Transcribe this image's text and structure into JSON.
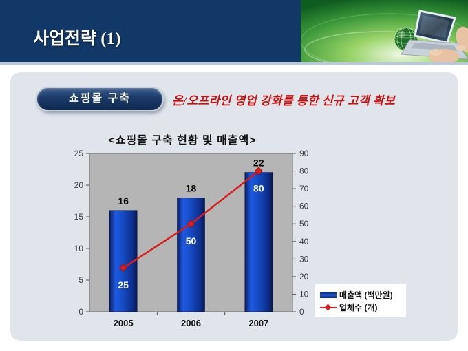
{
  "slide": {
    "header_title": "사업전략 (1)",
    "badge_label": "쇼핑몰 구축",
    "subtitle": "온/오프라인 영업 강화를 통한 신규 고객 확보",
    "header_image": "globe-laptop-hands-photo"
  },
  "colors": {
    "header_navy": "#123867",
    "panel_background": "#dfe5eb",
    "accent_red": "#c71111",
    "bar_blue": "#1450c8",
    "line_red": "#d91c1c",
    "plot_gray": "#b5b5b5"
  },
  "chart_data": {
    "type": "bar+line",
    "title": "<쇼핑몰 구축 현황 및 매출액>",
    "categories": [
      "2005",
      "2006",
      "2007"
    ],
    "series": [
      {
        "name": "매출액 (백만원)",
        "type": "bar",
        "axis": "left",
        "values": [
          16,
          18,
          22
        ],
        "color": "#1450c8",
        "value_label_color": "#000000"
      },
      {
        "name": "업체수 (개)",
        "type": "line",
        "axis": "right",
        "values": [
          25,
          50,
          80
        ],
        "color": "#d91c1c",
        "value_label_color": "#ffffff"
      }
    ],
    "left_axis": {
      "min": 0,
      "max": 25,
      "step": 5,
      "ticks": [
        0,
        5,
        10,
        15,
        20,
        25
      ]
    },
    "right_axis": {
      "min": 0,
      "max": 90,
      "step": 10,
      "ticks": [
        0,
        10,
        20,
        30,
        40,
        50,
        60,
        70,
        80,
        90
      ]
    },
    "legend": {
      "position": "bottom-right",
      "entries": [
        "매출액 (백만원)",
        "업체수 (개)"
      ]
    },
    "grid": false,
    "plot_background": "#b5b5b5"
  }
}
